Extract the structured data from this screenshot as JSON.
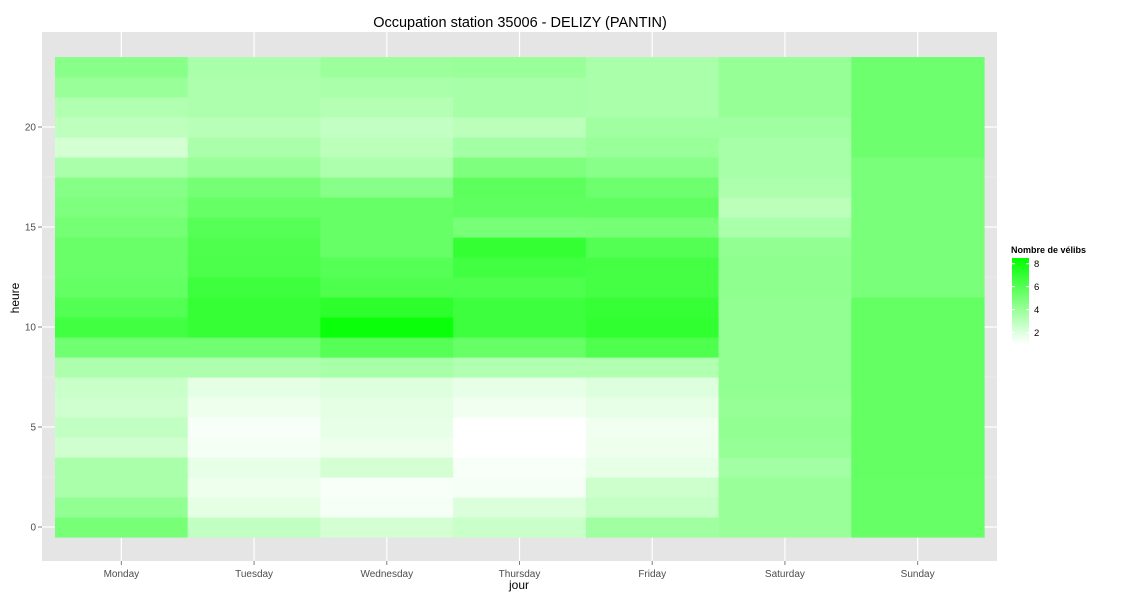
{
  "chart_data": {
    "type": "heatmap",
    "title": "Occupation station 35006 - DELIZY (PANTIN)",
    "xlabel": "jour",
    "ylabel": "heure",
    "categories": [
      "Monday",
      "Tuesday",
      "Wednesday",
      "Thursday",
      "Friday",
      "Saturday",
      "Sunday"
    ],
    "y": [
      0,
      1,
      2,
      3,
      4,
      5,
      6,
      7,
      8,
      9,
      10,
      11,
      12,
      13,
      14,
      15,
      16,
      17,
      18,
      19,
      20,
      21,
      22,
      23
    ],
    "ylim": [
      -0.5,
      23.5
    ],
    "yticks": [
      0,
      5,
      10,
      15,
      20
    ],
    "grid": true,
    "values": [
      [
        5.0,
        2.8,
        2.3,
        2.6,
        3.8,
        4.0,
        5.5
      ],
      [
        4.2,
        1.8,
        1.3,
        2.1,
        2.7,
        4.0,
        5.5
      ],
      [
        3.5,
        1.5,
        1.2,
        1.3,
        2.5,
        4.0,
        5.5
      ],
      [
        3.5,
        1.7,
        2.3,
        1.2,
        1.7,
        3.7,
        5.6
      ],
      [
        2.4,
        1.3,
        1.5,
        1.0,
        1.5,
        4.1,
        5.6
      ],
      [
        2.8,
        1.2,
        1.7,
        1.0,
        1.4,
        4.2,
        5.6
      ],
      [
        2.4,
        1.5,
        1.8,
        1.4,
        1.7,
        4.1,
        5.6
      ],
      [
        2.6,
        1.8,
        2.0,
        1.7,
        2.0,
        4.2,
        5.6
      ],
      [
        3.4,
        3.4,
        3.6,
        3.3,
        3.3,
        4.2,
        5.6
      ],
      [
        5.2,
        5.2,
        6.0,
        5.5,
        6.2,
        4.2,
        5.6
      ],
      [
        6.6,
        6.9,
        8.2,
        6.7,
        7.1,
        4.2,
        5.6
      ],
      [
        6.1,
        6.9,
        7.2,
        6.7,
        6.9,
        4.2,
        5.6
      ],
      [
        5.6,
        6.7,
        6.2,
        6.2,
        6.5,
        4.3,
        4.9
      ],
      [
        5.4,
        6.3,
        6.0,
        6.6,
        6.5,
        4.3,
        4.9
      ],
      [
        5.4,
        6.2,
        5.5,
        7.0,
        6.1,
        4.2,
        4.9
      ],
      [
        5.1,
        6.0,
        5.5,
        5.0,
        5.1,
        3.5,
        4.9
      ],
      [
        4.8,
        5.5,
        5.5,
        5.7,
        5.7,
        3.0,
        4.9
      ],
      [
        4.6,
        5.1,
        4.5,
        5.8,
        5.3,
        3.4,
        4.9
      ],
      [
        3.5,
        4.0,
        3.4,
        4.8,
        4.5,
        3.6,
        4.9
      ],
      [
        2.3,
        3.5,
        3.0,
        3.7,
        4.0,
        3.6,
        5.3
      ],
      [
        2.9,
        3.1,
        2.8,
        3.0,
        3.8,
        3.8,
        5.3
      ],
      [
        3.3,
        3.4,
        3.2,
        3.6,
        3.5,
        4.1,
        5.3
      ],
      [
        4.0,
        3.4,
        3.5,
        3.6,
        3.5,
        4.1,
        5.3
      ],
      [
        4.5,
        3.5,
        3.9,
        4.0,
        3.5,
        4.1,
        5.3
      ]
    ],
    "legend": {
      "title": "Nombre de vélibs",
      "ticks": [
        2,
        4,
        6,
        8
      ],
      "range": [
        1,
        8.5
      ],
      "low_color": "#ffffff",
      "high_color": "#00ff00",
      "placement": "right"
    },
    "panel_background": "#e5e5e5"
  }
}
